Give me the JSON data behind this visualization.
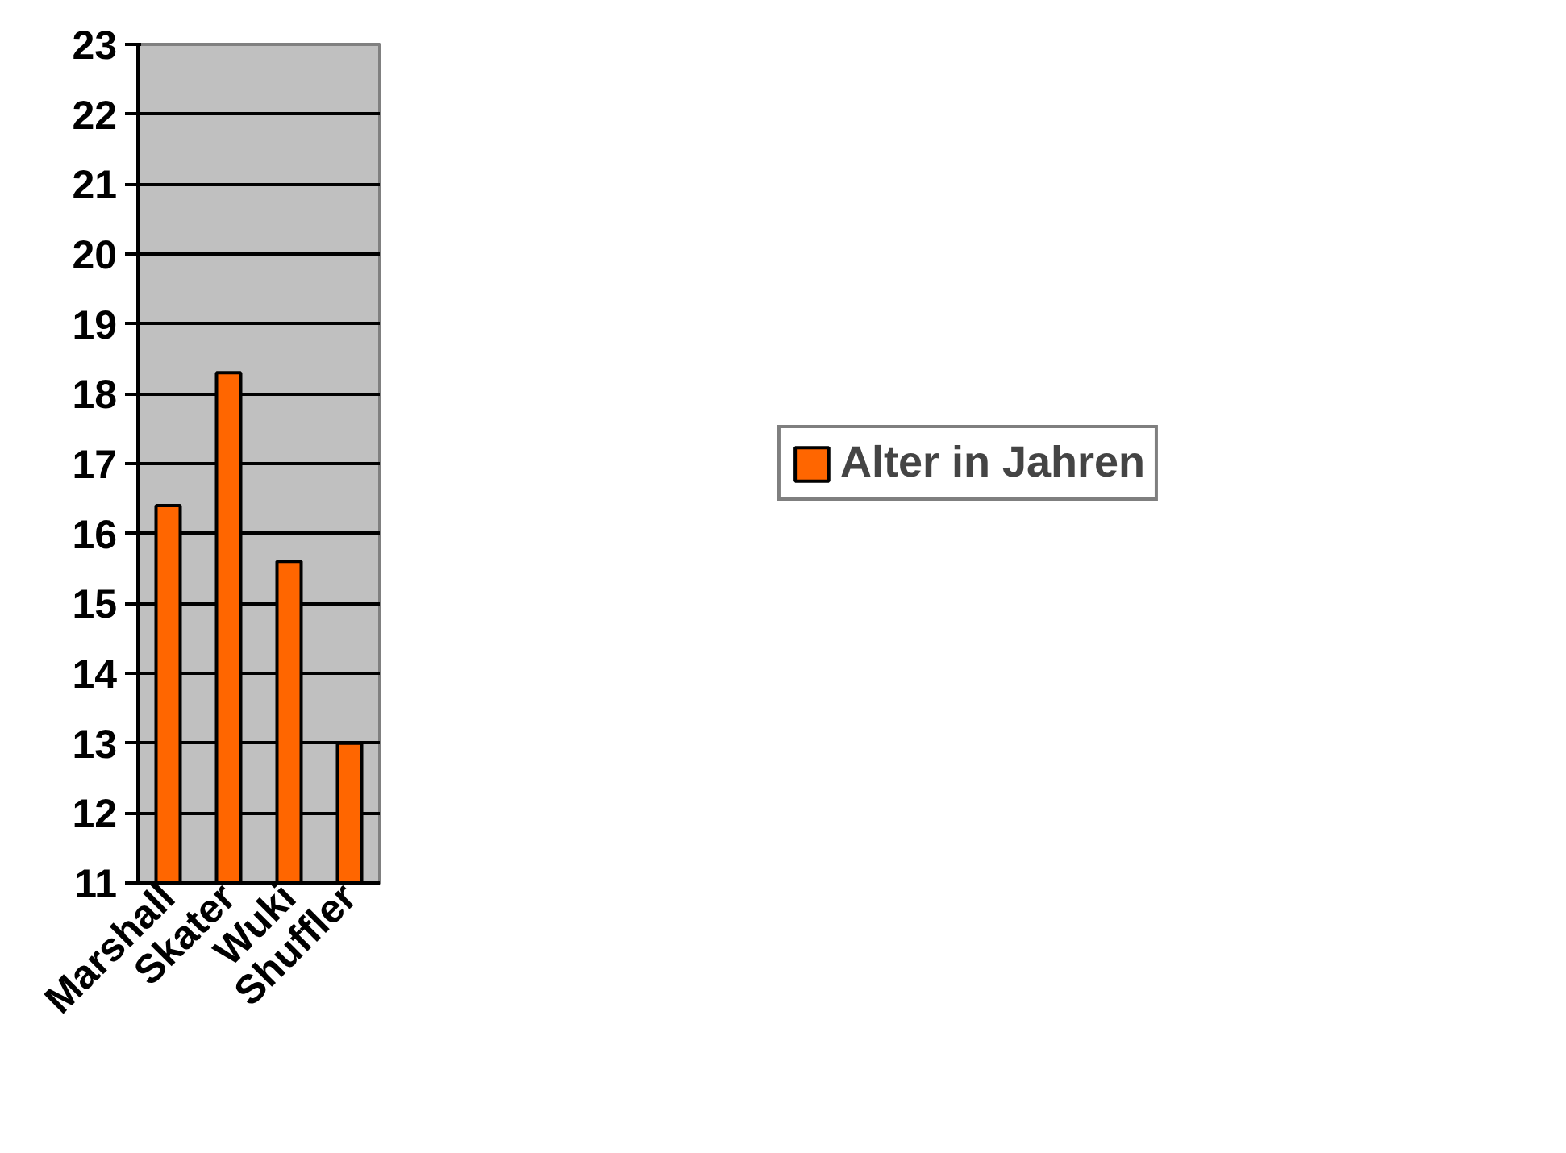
{
  "chart_data": {
    "type": "bar",
    "categories": [
      "Marshall",
      "Skater",
      "Wuki",
      "Shuffler"
    ],
    "series": [
      {
        "name": "Alter in Jahren",
        "color": "#ff6600",
        "values": [
          16.4,
          18.3,
          15.6,
          13.0
        ]
      }
    ],
    "ylim": [
      11,
      23
    ],
    "yticks": [
      11,
      12,
      13,
      14,
      15,
      16,
      17,
      18,
      19,
      20,
      21,
      22,
      23
    ],
    "grid": "y",
    "legend": "right"
  }
}
